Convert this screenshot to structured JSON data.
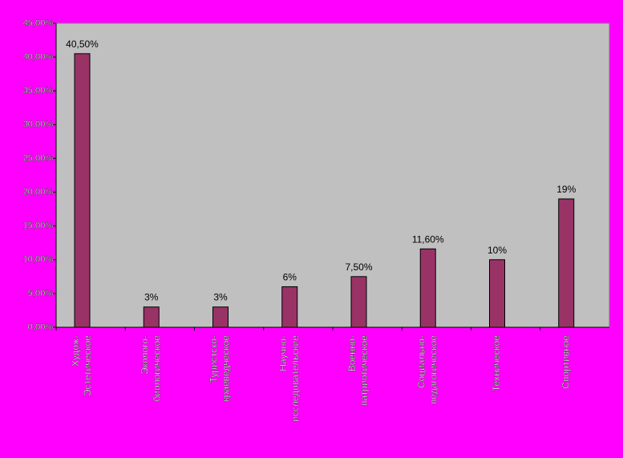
{
  "chart_data": {
    "type": "bar",
    "categories": [
      [
        "Худож-",
        "Эстетическое"
      ],
      [
        "Эколого-",
        "биологическое"
      ],
      [
        "Туристско-",
        "краеведческое"
      ],
      [
        "Научно-",
        "исследовательские"
      ],
      [
        "Военно-",
        "патриотическое"
      ],
      [
        "Социально-",
        "педагогическое"
      ],
      [
        "Техническое"
      ],
      [
        "Спортивное"
      ]
    ],
    "values": [
      40.5,
      3,
      3,
      6,
      7.5,
      11.6,
      10,
      19
    ],
    "value_labels": [
      "40,50%",
      "3%",
      "3%",
      "6%",
      "7,50%",
      "11,60%",
      "10%",
      "19%"
    ],
    "color": "#993366",
    "ylim": [
      0,
      45
    ],
    "yticks": [
      {
        "value": 0,
        "label": "0,00%"
      },
      {
        "value": 5,
        "label": "5,00%"
      },
      {
        "value": 10,
        "label": "10,00%"
      },
      {
        "value": 15,
        "label": "15,00%"
      },
      {
        "value": 20,
        "label": "20,00%"
      },
      {
        "value": 25,
        "label": "25,00%"
      },
      {
        "value": 30,
        "label": "30,00%"
      },
      {
        "value": 35,
        "label": "35,00%"
      },
      {
        "value": 40,
        "label": "40,00%"
      },
      {
        "value": 45,
        "label": "45,00%"
      }
    ]
  }
}
